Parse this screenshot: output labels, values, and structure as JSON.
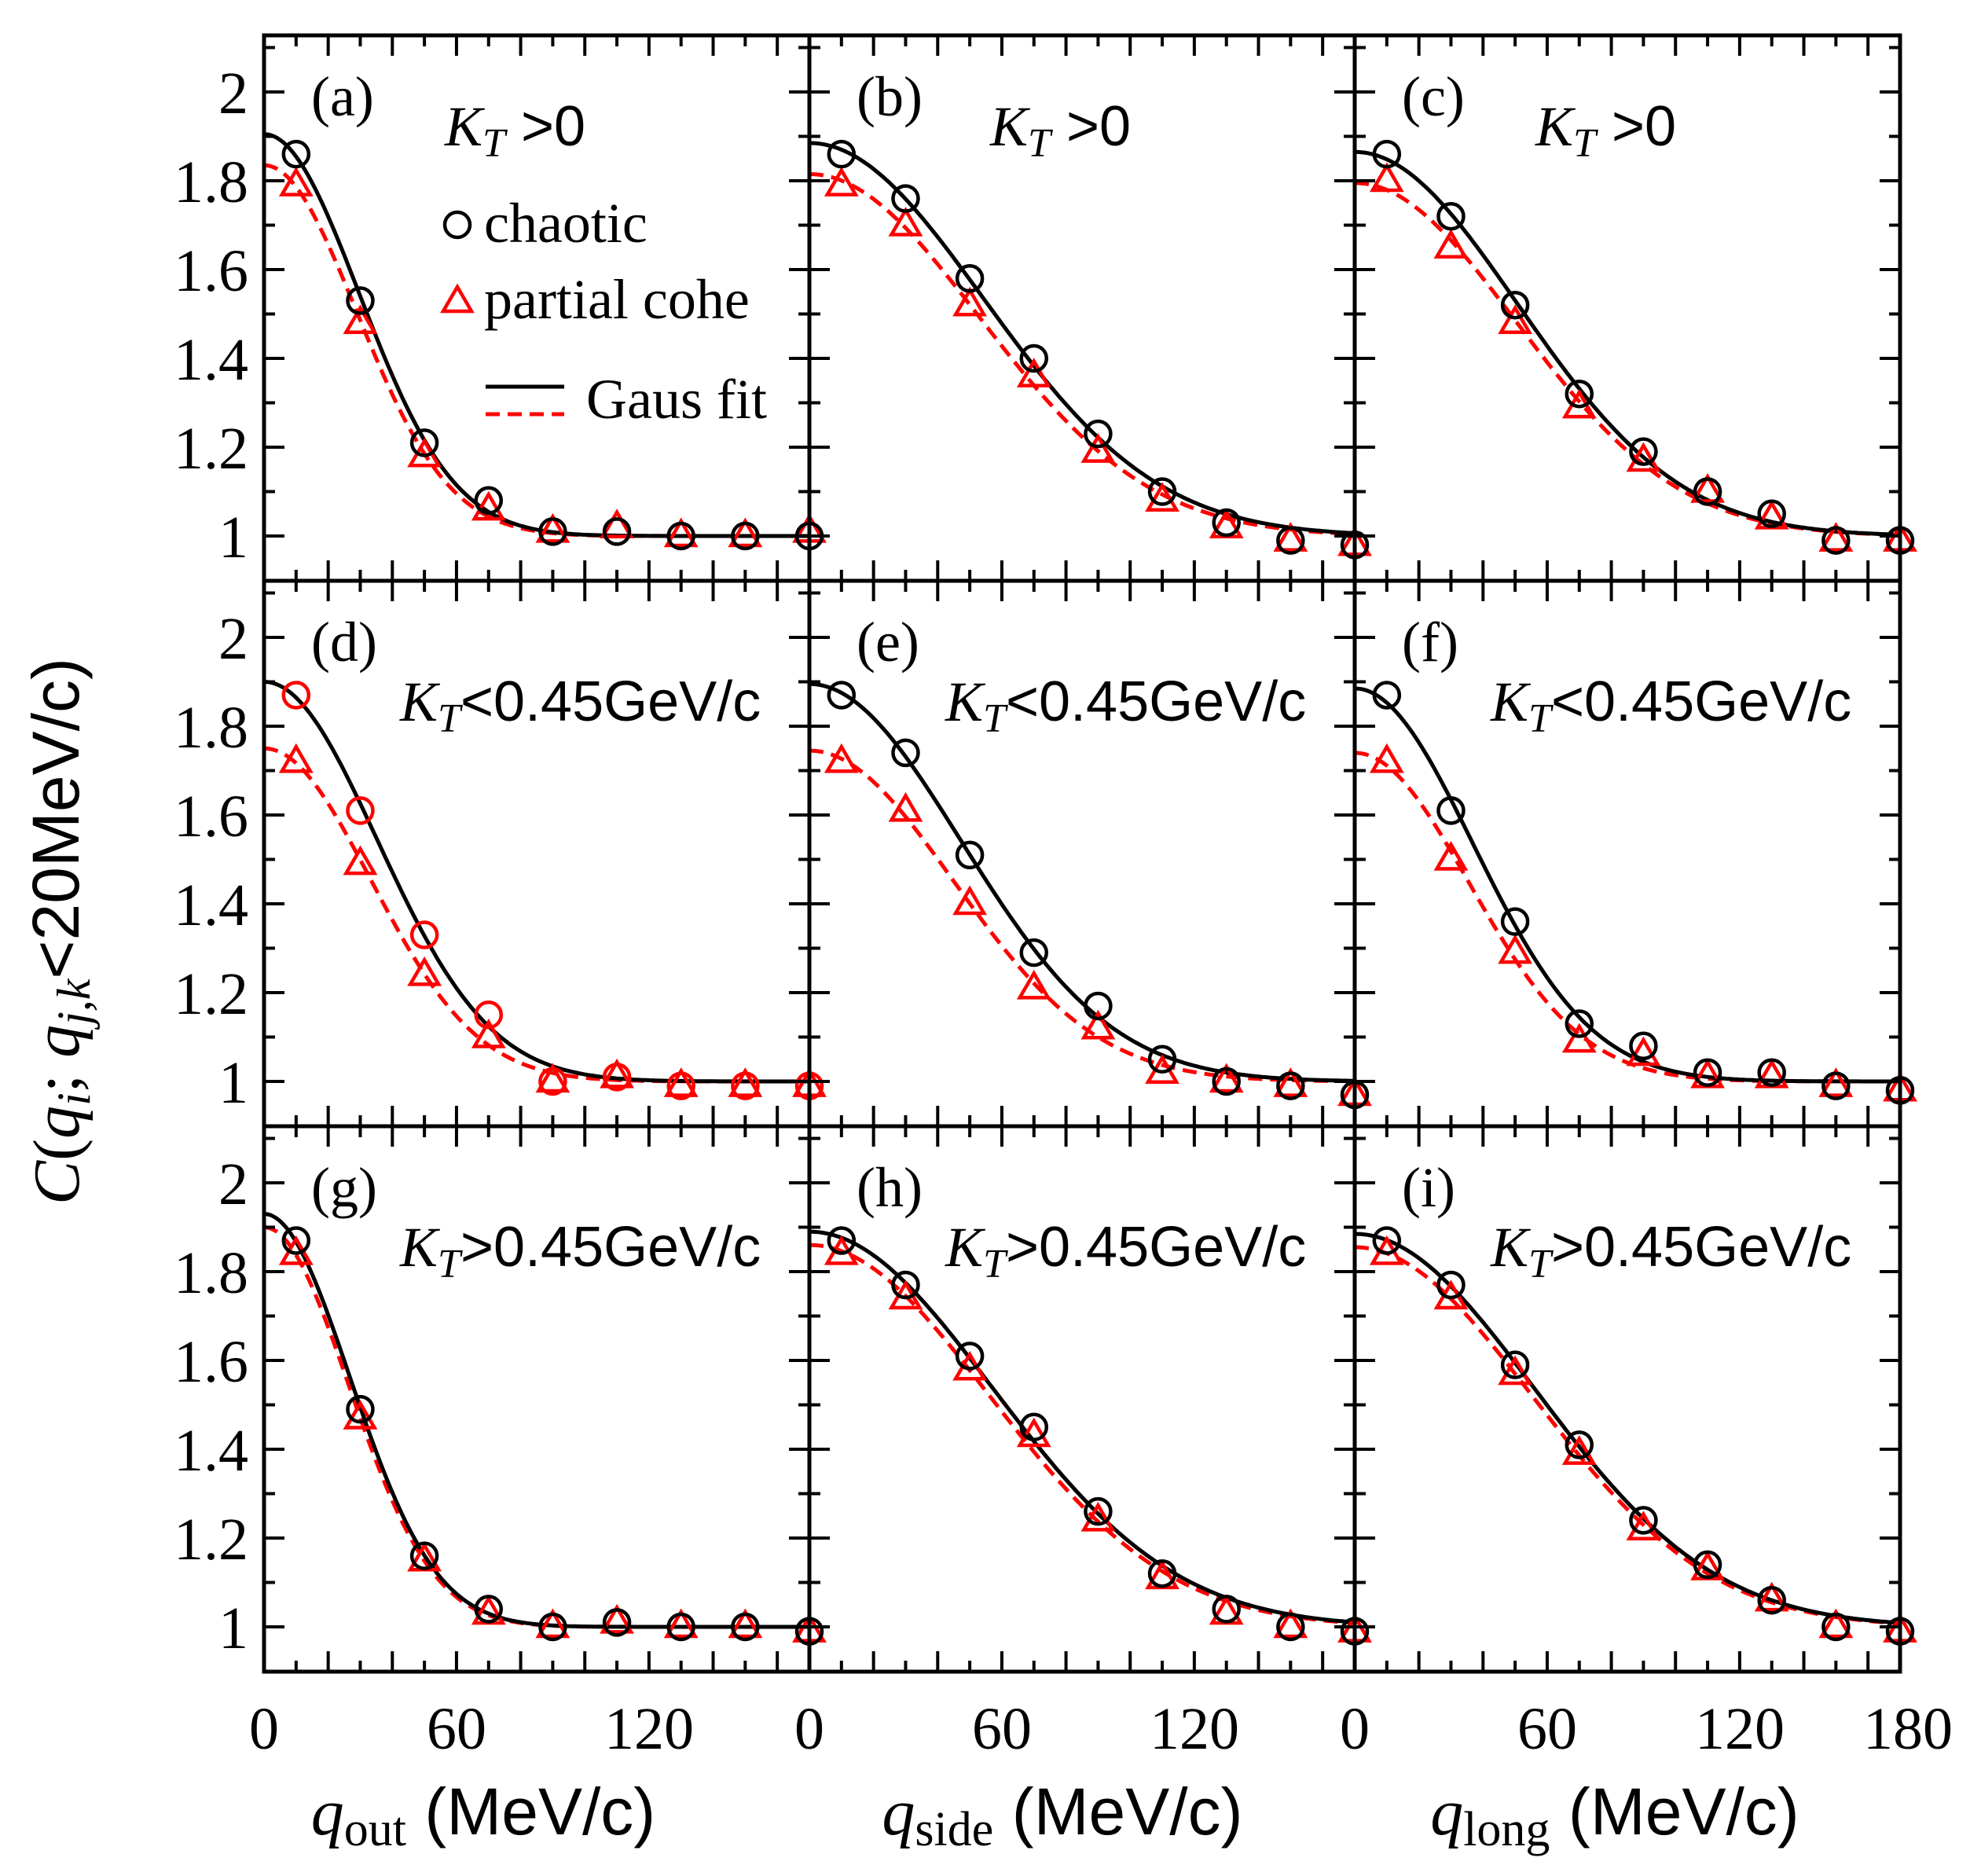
{
  "colors": {
    "chaotic": "#000000",
    "partial": "#ff0000",
    "frame": "#000000"
  },
  "ylabel": {
    "main": "C",
    "open": "(",
    "q1": "q",
    "sub1": "i",
    "sep1": "; ",
    "q2": "q",
    "sub2": "j,k",
    "rest": "<20MeV/c)"
  },
  "xlabels": [
    {
      "var": "q",
      "sub": "out",
      "unit": " (MeV/c)"
    },
    {
      "var": "q",
      "sub": "side",
      "unit": " (MeV/c)"
    },
    {
      "var": "q",
      "sub": "long",
      "unit": " (MeV/c)"
    }
  ],
  "ytick_labels": [
    "1",
    "1.2",
    "1.4",
    "1.6",
    "1.8",
    "2"
  ],
  "xtick_labels": [
    "0",
    "60",
    "120",
    "0",
    "60",
    "120",
    "0",
    "60",
    "120",
    "180"
  ],
  "legend": {
    "chaotic": "chaotic",
    "partial": "partial cohe",
    "fit": "Gaus fit"
  },
  "chart_data": {
    "type": "scatter",
    "xlim": [
      0,
      170
    ],
    "ylim": [
      0.98,
      2.1
    ],
    "grid": false,
    "legend_position": "top-right of panel (a)",
    "panels": [
      {
        "label": "(a)",
        "kt": {
          "k": "K",
          "sub": "T",
          "cond": " >0"
        },
        "chaotic": {
          "x": [
            10,
            30,
            50,
            70,
            90,
            110,
            130,
            150,
            170
          ],
          "y": [
            1.86,
            1.53,
            1.21,
            1.08,
            1.01,
            1.01,
            1.0,
            1.0,
            1.0
          ]
        },
        "partial": {
          "x": [
            10,
            30,
            50,
            70,
            90,
            110,
            130,
            150,
            170
          ],
          "y": [
            1.79,
            1.48,
            1.18,
            1.06,
            1.01,
            1.02,
            1.0,
            1.0,
            1.01
          ]
        },
        "partial_open_circles": false
      },
      {
        "label": "(b)",
        "kt": {
          "k": "K",
          "sub": "T",
          "cond": " >0"
        },
        "chaotic": {
          "x": [
            10,
            30,
            50,
            70,
            90,
            110,
            130,
            150,
            170
          ],
          "y": [
            1.86,
            1.76,
            1.58,
            1.4,
            1.23,
            1.1,
            1.03,
            0.99,
            0.98
          ]
        },
        "partial": {
          "x": [
            10,
            30,
            50,
            70,
            90,
            110,
            130,
            150,
            170
          ],
          "y": [
            1.79,
            1.7,
            1.52,
            1.36,
            1.19,
            1.08,
            1.02,
            0.99,
            0.98
          ]
        },
        "partial_open_circles": false
      },
      {
        "label": "(c)",
        "kt": {
          "k": "K",
          "sub": "T",
          "cond": " >0"
        },
        "chaotic": {
          "x": [
            10,
            30,
            50,
            70,
            90,
            110,
            130,
            150,
            170
          ],
          "y": [
            1.86,
            1.72,
            1.52,
            1.32,
            1.19,
            1.1,
            1.05,
            0.99,
            0.99
          ]
        },
        "partial": {
          "x": [
            10,
            30,
            50,
            70,
            90,
            110,
            130,
            150,
            170
          ],
          "y": [
            1.8,
            1.65,
            1.48,
            1.29,
            1.17,
            1.1,
            1.04,
            0.99,
            0.99
          ]
        },
        "partial_open_circles": false
      },
      {
        "label": "(d)",
        "kt": {
          "k": "K",
          "sub": "T",
          "cond": "<0.45GeV/c"
        },
        "chaotic": {
          "x": [
            10,
            30,
            50,
            70,
            90,
            110,
            130,
            150,
            170
          ],
          "y": [
            1.87,
            1.61,
            1.33,
            1.15,
            1.0,
            1.01,
            0.99,
            0.99,
            0.99
          ]
        },
        "partial": {
          "x": [
            10,
            30,
            50,
            70,
            90,
            110,
            130,
            150,
            170
          ],
          "y": [
            1.72,
            1.49,
            1.24,
            1.1,
            1.0,
            1.01,
            0.99,
            0.99,
            0.99
          ]
        },
        "partial_open_circles": true
      },
      {
        "label": "(e)",
        "kt": {
          "k": "K",
          "sub": "T",
          "cond": "<0.45GeV/c"
        },
        "chaotic": {
          "x": [
            10,
            30,
            50,
            70,
            90,
            110,
            130,
            150,
            170
          ],
          "y": [
            1.87,
            1.74,
            1.51,
            1.29,
            1.17,
            1.05,
            1.0,
            0.99,
            0.97
          ]
        },
        "partial": {
          "x": [
            10,
            30,
            50,
            70,
            90,
            110,
            130,
            150,
            170
          ],
          "y": [
            1.72,
            1.61,
            1.4,
            1.21,
            1.12,
            1.02,
            1.0,
            0.99,
            0.97
          ]
        },
        "partial_open_circles": false
      },
      {
        "label": "(f)",
        "kt": {
          "k": "K",
          "sub": "T",
          "cond": "<0.45GeV/c"
        },
        "chaotic": {
          "x": [
            10,
            30,
            50,
            70,
            90,
            110,
            130,
            150,
            170
          ],
          "y": [
            1.87,
            1.61,
            1.36,
            1.13,
            1.08,
            1.02,
            1.02,
            0.99,
            0.98
          ]
        },
        "partial": {
          "x": [
            10,
            30,
            50,
            70,
            90,
            110,
            130,
            150,
            170
          ],
          "y": [
            1.72,
            1.5,
            1.29,
            1.09,
            1.06,
            1.01,
            1.01,
            0.99,
            0.98
          ]
        },
        "partial_open_circles": false
      },
      {
        "label": "(g)",
        "kt": {
          "k": "K",
          "sub": "T",
          "cond": ">0.45GeV/c"
        },
        "chaotic": {
          "x": [
            10,
            30,
            50,
            70,
            90,
            110,
            130,
            150,
            170
          ],
          "y": [
            1.87,
            1.49,
            1.16,
            1.04,
            1.0,
            1.01,
            1.0,
            1.0,
            0.99
          ]
        },
        "partial": {
          "x": [
            10,
            30,
            50,
            70,
            90,
            110,
            130,
            150,
            170
          ],
          "y": [
            1.84,
            1.47,
            1.15,
            1.03,
            1.0,
            1.01,
            1.0,
            1.0,
            0.99
          ]
        },
        "partial_open_circles": false
      },
      {
        "label": "(h)",
        "kt": {
          "k": "K",
          "sub": "T",
          "cond": ">0.45GeV/c"
        },
        "chaotic": {
          "x": [
            10,
            30,
            50,
            70,
            90,
            110,
            130,
            150,
            170
          ],
          "y": [
            1.87,
            1.77,
            1.61,
            1.45,
            1.26,
            1.12,
            1.04,
            1.0,
            0.99
          ]
        },
        "partial": {
          "x": [
            10,
            30,
            50,
            70,
            90,
            110,
            130,
            150,
            170
          ],
          "y": [
            1.84,
            1.74,
            1.58,
            1.43,
            1.24,
            1.11,
            1.03,
            1.0,
            0.99
          ]
        },
        "partial_open_circles": false
      },
      {
        "label": "(i)",
        "kt": {
          "k": "K",
          "sub": "T",
          "cond": ">0.45GeV/c"
        },
        "chaotic": {
          "x": [
            10,
            30,
            50,
            70,
            90,
            110,
            130,
            150,
            170
          ],
          "y": [
            1.87,
            1.77,
            1.59,
            1.41,
            1.24,
            1.14,
            1.06,
            1.0,
            0.99
          ]
        },
        "partial": {
          "x": [
            10,
            30,
            50,
            70,
            90,
            110,
            130,
            150,
            170
          ],
          "y": [
            1.84,
            1.74,
            1.57,
            1.39,
            1.22,
            1.13,
            1.06,
            1.0,
            0.99
          ]
        },
        "partial_open_circles": false
      }
    ]
  }
}
